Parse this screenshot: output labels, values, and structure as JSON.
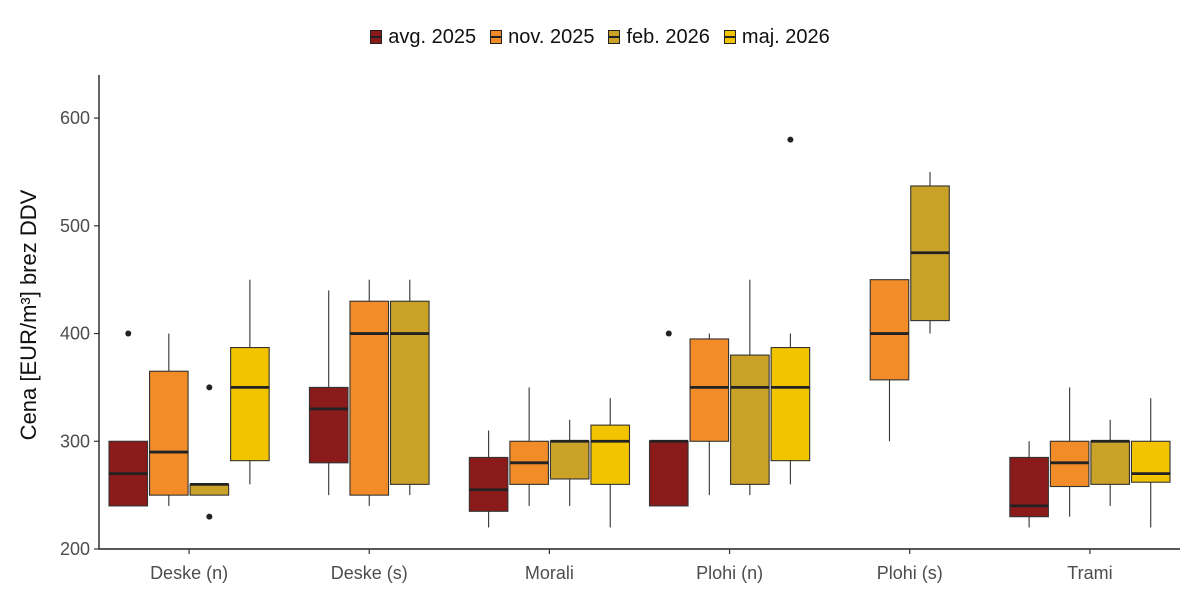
{
  "chart_data": {
    "type": "boxplot",
    "ylabel": "Cena [EUR/m³] brez DDV",
    "xlabel": "",
    "ylim": [
      200,
      640
    ],
    "yticks": [
      200,
      300,
      400,
      500,
      600
    ],
    "categories": [
      "Deske (n)",
      "Deske (s)",
      "Morali",
      "Plohi (n)",
      "Plohi (s)",
      "Trami"
    ],
    "legend_position": "top",
    "grid": false,
    "series": [
      {
        "name": "avg. 2025",
        "color": "#8B1A1A",
        "boxes": [
          {
            "category": "Deske (n)",
            "whisker_low": 240,
            "q1": 240,
            "median": 270,
            "q3": 300,
            "whisker_high": 300,
            "outliers": [
              400
            ]
          },
          {
            "category": "Deske (s)",
            "whisker_low": 250,
            "q1": 280,
            "median": 330,
            "q3": 350,
            "whisker_high": 440,
            "outliers": []
          },
          {
            "category": "Morali",
            "whisker_low": 220,
            "q1": 235,
            "median": 255,
            "q3": 285,
            "whisker_high": 310,
            "outliers": []
          },
          {
            "category": "Plohi (n)",
            "whisker_low": 240,
            "q1": 240,
            "median": 300,
            "q3": 300,
            "whisker_high": 300,
            "outliers": [
              400
            ]
          },
          {
            "category": "Trami",
            "whisker_low": 220,
            "q1": 230,
            "median": 240,
            "q3": 285,
            "whisker_high": 300,
            "outliers": []
          }
        ]
      },
      {
        "name": "nov. 2025",
        "color": "#F28C28",
        "boxes": [
          {
            "category": "Deske (n)",
            "whisker_low": 240,
            "q1": 250,
            "median": 290,
            "q3": 365,
            "whisker_high": 400,
            "outliers": []
          },
          {
            "category": "Deske (s)",
            "whisker_low": 240,
            "q1": 250,
            "median": 400,
            "q3": 430,
            "whisker_high": 450,
            "outliers": []
          },
          {
            "category": "Morali",
            "whisker_low": 240,
            "q1": 260,
            "median": 280,
            "q3": 300,
            "whisker_high": 350,
            "outliers": []
          },
          {
            "category": "Plohi (n)",
            "whisker_low": 250,
            "q1": 300,
            "median": 350,
            "q3": 395,
            "whisker_high": 400,
            "outliers": []
          },
          {
            "category": "Plohi (s)",
            "whisker_low": 300,
            "q1": 357,
            "median": 400,
            "q3": 450,
            "whisker_high": 450,
            "outliers": []
          },
          {
            "category": "Trami",
            "whisker_low": 230,
            "q1": 258,
            "median": 280,
            "q3": 300,
            "whisker_high": 350,
            "outliers": []
          }
        ]
      },
      {
        "name": "feb. 2026",
        "color": "#C9A227",
        "boxes": [
          {
            "category": "Deske (n)",
            "whisker_low": 250,
            "q1": 250,
            "median": 260,
            "q3": 260,
            "whisker_high": 260,
            "outliers": [
              230,
              350
            ]
          },
          {
            "category": "Deske (s)",
            "whisker_low": 250,
            "q1": 260,
            "median": 400,
            "q3": 430,
            "whisker_high": 450,
            "outliers": []
          },
          {
            "category": "Morali",
            "whisker_low": 240,
            "q1": 265,
            "median": 300,
            "q3": 300,
            "whisker_high": 320,
            "outliers": []
          },
          {
            "category": "Plohi (n)",
            "whisker_low": 250,
            "q1": 260,
            "median": 350,
            "q3": 380,
            "whisker_high": 450,
            "outliers": []
          },
          {
            "category": "Plohi (s)",
            "whisker_low": 400,
            "q1": 412,
            "median": 475,
            "q3": 537,
            "whisker_high": 550,
            "outliers": []
          },
          {
            "category": "Trami",
            "whisker_low": 240,
            "q1": 260,
            "median": 300,
            "q3": 300,
            "whisker_high": 320,
            "outliers": []
          }
        ]
      },
      {
        "name": "maj. 2026",
        "color": "#F2C400",
        "boxes": [
          {
            "category": "Deske (n)",
            "whisker_low": 260,
            "q1": 282,
            "median": 350,
            "q3": 387,
            "whisker_high": 450,
            "outliers": []
          },
          {
            "category": "Morali",
            "whisker_low": 220,
            "q1": 260,
            "median": 300,
            "q3": 315,
            "whisker_high": 340,
            "outliers": []
          },
          {
            "category": "Plohi (n)",
            "whisker_low": 260,
            "q1": 282,
            "median": 350,
            "q3": 387,
            "whisker_high": 400,
            "outliers": [
              580
            ]
          },
          {
            "category": "Trami",
            "whisker_low": 220,
            "q1": 262,
            "median": 270,
            "q3": 300,
            "whisker_high": 340,
            "outliers": []
          }
        ]
      }
    ]
  }
}
